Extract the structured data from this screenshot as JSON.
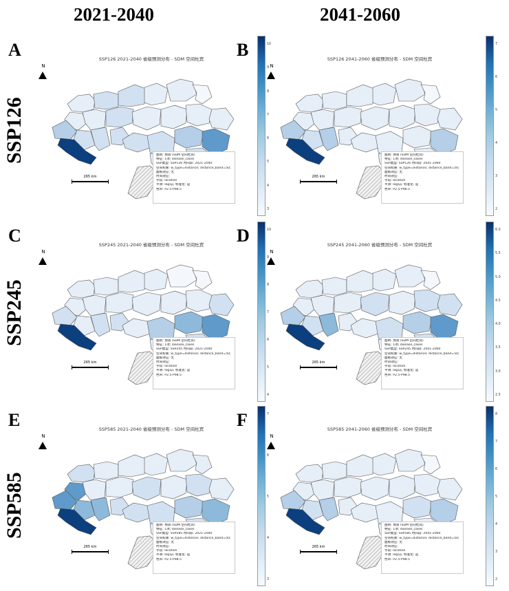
{
  "columns": [
    "2021-2040",
    "2041-2060"
  ],
  "rows": [
    "SSP126",
    "SSP245",
    "SSP585"
  ],
  "colors": {
    "c1": "#f4f8fd",
    "c2": "#e6eef8",
    "c3": "#d2e1f1",
    "c4": "#b4cfe7",
    "c5": "#8dbadb",
    "c6": "#5f9acb",
    "c7": "#3a7cbb",
    "c8": "#1c5c9e",
    "c9": "#0b3f7e",
    "border": "#555555",
    "hatch": "#9a9a9a"
  },
  "panels": [
    {
      "letter": "A",
      "ssp": "SSP126",
      "period": "2021-2040",
      "title": "SSP126   2021-2040   省级预测分布 - SDM 空间杜宾",
      "north": "N",
      "scale": "265 km",
      "legend": [
        "图例: 预测 (SDM 空间杜宾)",
        "特征: 1项; disease_cases",
        "SSP类型: SSP126  时间段: 2021-2040",
        "空间权重: w_type=distance; distance_band=50; row_standardize=是",
        "面板效应: 无",
        "时间效应:",
        "字段: location",
        "平滑: log1p, 标准化: 是",
        "色带: P2.5-P98.5"
      ],
      "colorbar_ticks": [
        "10",
        "9",
        "8",
        "7",
        "6",
        "5",
        "4",
        "3"
      ],
      "values": [
        2,
        3,
        3,
        2,
        2,
        1,
        2,
        2,
        3,
        4,
        3,
        3,
        2,
        9,
        3,
        3,
        2,
        2,
        2,
        4,
        3,
        6,
        3,
        2
      ]
    },
    {
      "letter": "B",
      "ssp": "SSP126",
      "period": "2041-2060",
      "title": "SSP126   2041-2060   省级预测分布 - SDM 空间杜宾",
      "north": "N",
      "scale": "265 km",
      "legend": [
        "图例: 预测 (SDM 空间杜宾)",
        "特征: 1项; disease_cases",
        "SSP类型: SSP126  时间段: 2041-2060",
        "空间权重: w_type=distance; distance_band=50; row_standardize=是",
        "面板效应: 无",
        "时间效应:",
        "字段: location",
        "平滑: log1p, 标准化: 是",
        "色带: P2.5-P98.5"
      ],
      "colorbar_ticks": [
        "7",
        "6",
        "5",
        "4",
        "3",
        "2"
      ],
      "values": [
        2,
        2,
        2,
        2,
        2,
        1,
        2,
        2,
        2,
        4,
        3,
        4,
        2,
        9,
        2,
        2,
        2,
        2,
        2,
        2,
        2,
        4,
        2,
        2
      ]
    },
    {
      "letter": "C",
      "ssp": "SSP245",
      "period": "2021-2040",
      "title": "SSP245   2021-2040   省级预测分布 - SDM 空间杜宾",
      "north": "N",
      "scale": "265 km",
      "legend": [
        "图例: 预测 (SDM 空间杜宾)",
        "特征: 1项; disease_cases",
        "SSP类型: SSP245  时间段: 2021-2040",
        "空间权重: w_type=distance; distance_band=50; row_standardize=是",
        "面板效应: 无",
        "时间效应:",
        "字段: location",
        "平滑: log1p, 标准化: 是",
        "色带: P2.5-P98.5"
      ],
      "colorbar_ticks": [
        "10",
        "9",
        "8",
        "7",
        "6",
        "5",
        "4"
      ],
      "values": [
        2,
        2,
        2,
        2,
        1,
        1,
        2,
        2,
        2,
        3,
        2,
        3,
        2,
        9,
        3,
        2,
        2,
        2,
        3,
        5,
        4,
        6,
        3,
        2
      ]
    },
    {
      "letter": "D",
      "ssp": "SSP245",
      "period": "2041-2060",
      "title": "SSP245   2041-2060   省级预测分布 - SDM 空间杜宾",
      "north": "N",
      "scale": "265 km",
      "legend": [
        "图例: 预测 (SDM 空间杜宾)",
        "特征: 1项; disease_cases",
        "SSP类型: SSP245  时间段: 2041-2060",
        "空间权重: w_type=distance; distance_band=50; row_standardize=是",
        "面板效应: 无",
        "时间效应:",
        "字段: location",
        "平滑: log1p, 标准化: 是",
        "色带: P2.5-P98.5"
      ],
      "colorbar_ticks": [
        "6.0",
        "5.5",
        "5.0",
        "4.5",
        "4.0",
        "3.5",
        "3.0",
        "2.5"
      ],
      "values": [
        2,
        2,
        2,
        2,
        2,
        1,
        2,
        2,
        2,
        4,
        3,
        5,
        3,
        9,
        2,
        2,
        2,
        3,
        3,
        4,
        3,
        6,
        3,
        2
      ]
    },
    {
      "letter": "E",
      "ssp": "SSP585",
      "period": "2021-2040",
      "title": "SSP585   2021-2040   省级预测分布 - SDM 空间杜宾",
      "north": "N",
      "scale": "265 km",
      "legend": [
        "图例: 预测 (SDM 空间杜宾)",
        "特征: 1项; disease_cases",
        "SSP类型: SSP585  时间段: 2021-2040",
        "空间权重: w_type=distance; distance_band=50; row_standardize=是",
        "面板效应: 无",
        "时间效应:",
        "字段: location",
        "平滑: log1p, 标准化: 是",
        "色带: P2.5-P98.5"
      ],
      "colorbar_ticks": [
        "7",
        "6",
        "5",
        "4",
        "3"
      ],
      "values": [
        3,
        2,
        2,
        2,
        2,
        2,
        6,
        2,
        2,
        6,
        5,
        5,
        3,
        9,
        3,
        3,
        2,
        3,
        2,
        4,
        3,
        5,
        3,
        2
      ]
    },
    {
      "letter": "F",
      "ssp": "SSP585",
      "period": "2041-2060",
      "title": "SSP585   2041-2060   省级预测分布 - SDM 空间杜宾",
      "north": "N",
      "scale": "265 km",
      "legend": [
        "图例: 预测 (SDM 空间杜宾)",
        "特征: 1项; disease_cases",
        "SSP类型: SSP585  时间段: 2041-2060",
        "空间权重: w_type=distance; distance_band=50; row_standardize=是",
        "面板效应: 无",
        "时间效应:",
        "字段: location",
        "平滑: log1p, 标准化: 是",
        "色带: P2.5-P98.5"
      ],
      "colorbar_ticks": [
        "8",
        "7",
        "6",
        "5",
        "4",
        "3",
        "2"
      ],
      "values": [
        2,
        2,
        2,
        2,
        2,
        1,
        2,
        2,
        2,
        4,
        3,
        4,
        2,
        9,
        2,
        2,
        2,
        2,
        2,
        3,
        2,
        4,
        2,
        2
      ]
    }
  ]
}
